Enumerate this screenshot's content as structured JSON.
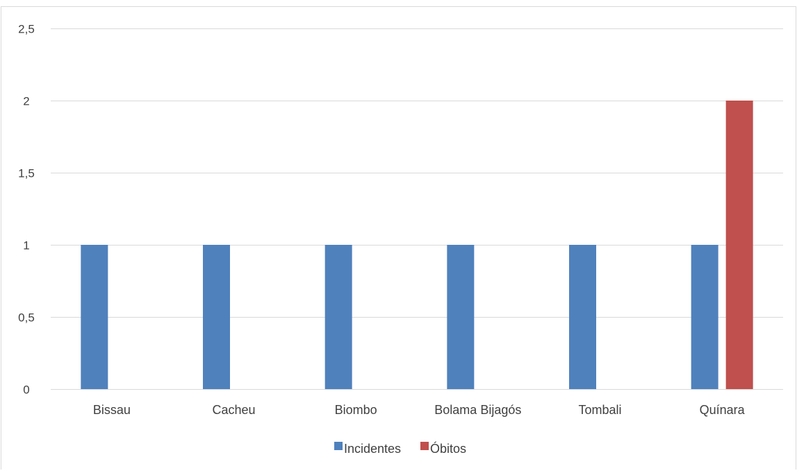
{
  "chart_data": {
    "type": "bar",
    "categories": [
      "Bissau",
      "Cacheu",
      "Biombo",
      "Bolama Bijagós",
      "Tombali",
      "Quínara"
    ],
    "series": [
      {
        "name": "Incidentes",
        "values": [
          1,
          1,
          1,
          1,
          1,
          1
        ],
        "color": "#4F81BD"
      },
      {
        "name": "Óbitos",
        "values": [
          0,
          0,
          0,
          0,
          0,
          2
        ],
        "color": "#C0504D"
      }
    ],
    "y_ticks": [
      "0",
      "0,5",
      "1",
      "1,5",
      "2",
      "2,5"
    ],
    "y_tick_values": [
      0,
      0.5,
      1,
      1.5,
      2,
      2.5
    ],
    "ylim": [
      0,
      2.5
    ],
    "grid": true,
    "legend_position": "bottom",
    "title": "",
    "xlabel": "",
    "ylabel": ""
  }
}
